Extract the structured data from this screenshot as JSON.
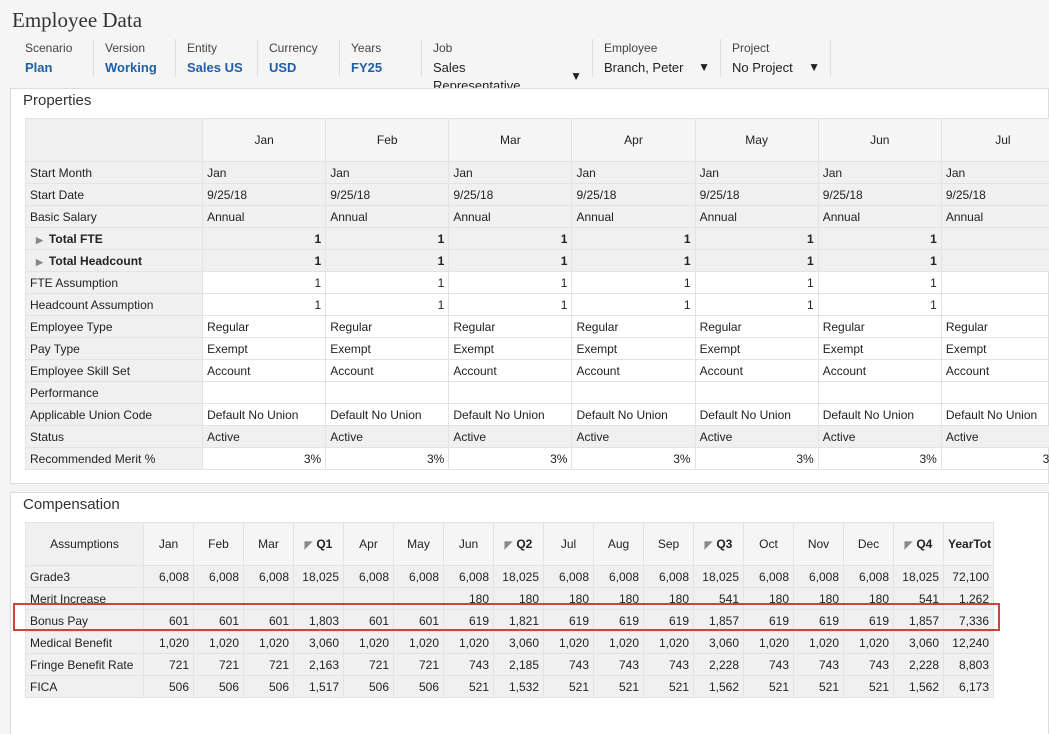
{
  "page": {
    "title": "Employee Data"
  },
  "pov": [
    {
      "label": "Scenario",
      "value": "Plan"
    },
    {
      "label": "Version",
      "value": "Working"
    },
    {
      "label": "Entity",
      "value": "Sales US"
    },
    {
      "label": "Currency",
      "value": "USD"
    },
    {
      "label": "Years",
      "value": "FY25"
    }
  ],
  "pov_selects": [
    {
      "label": "Job",
      "value": "Sales Representative"
    },
    {
      "label": "Employee",
      "value": "Branch, Peter"
    },
    {
      "label": "Project",
      "value": "No Project"
    }
  ],
  "properties": {
    "title": "Properties",
    "columns": [
      "Jan",
      "Feb",
      "Mar",
      "Apr",
      "May",
      "Jun",
      "Jul"
    ],
    "rows": [
      {
        "label": "Start Month",
        "value": "Jan",
        "style": "gray",
        "align": "left"
      },
      {
        "label": "Start Date",
        "value": "9/25/18",
        "style": "gray",
        "align": "left"
      },
      {
        "label": "Basic Salary",
        "value": "Annual",
        "style": "gray",
        "align": "left"
      },
      {
        "label": "Total FTE",
        "value": "1",
        "style": "gray bold",
        "align": "num",
        "expand": true
      },
      {
        "label": "Total Headcount",
        "value": "1",
        "style": "gray bold",
        "align": "num",
        "expand": true
      },
      {
        "label": "FTE Assumption",
        "value": "1",
        "style": "white",
        "align": "num"
      },
      {
        "label": "Headcount Assumption",
        "value": "1",
        "style": "white",
        "align": "num"
      },
      {
        "label": "Employee Type",
        "value": "Regular",
        "style": "white",
        "align": "left"
      },
      {
        "label": "Pay Type",
        "value": "Exempt",
        "style": "white",
        "align": "left"
      },
      {
        "label": "Employee Skill Set",
        "value": "Account",
        "style": "white",
        "align": "left"
      },
      {
        "label": "Performance",
        "value": "",
        "style": "white",
        "align": "left"
      },
      {
        "label": "Applicable Union Code",
        "value": "Default No Union",
        "style": "white",
        "align": "left"
      },
      {
        "label": "Status",
        "value": "Active",
        "style": "gray",
        "align": "left"
      },
      {
        "label": "Recommended Merit %",
        "value": "3%",
        "style": "white",
        "align": "num"
      }
    ]
  },
  "compensation": {
    "title": "Compensation",
    "corner": "Assumptions",
    "columns": [
      {
        "label": "Jan"
      },
      {
        "label": "Feb"
      },
      {
        "label": "Mar"
      },
      {
        "label": "Q1",
        "quarter": true
      },
      {
        "label": "Apr"
      },
      {
        "label": "May"
      },
      {
        "label": "Jun"
      },
      {
        "label": "Q2",
        "quarter": true
      },
      {
        "label": "Jul"
      },
      {
        "label": "Aug"
      },
      {
        "label": "Sep"
      },
      {
        "label": "Q3",
        "quarter": true
      },
      {
        "label": "Oct"
      },
      {
        "label": "Nov"
      },
      {
        "label": "Dec"
      },
      {
        "label": "Q4",
        "quarter": true
      },
      {
        "label": "YearTot",
        "total": true
      }
    ],
    "rows": [
      {
        "label": "Grade3",
        "values": [
          "6,008",
          "6,008",
          "6,008",
          "18,025",
          "6,008",
          "6,008",
          "6,008",
          "18,025",
          "6,008",
          "6,008",
          "6,008",
          "18,025",
          "6,008",
          "6,008",
          "6,008",
          "18,025",
          "72,100"
        ]
      },
      {
        "label": "Merit Increase",
        "values": [
          "",
          "",
          "",
          "",
          "",
          "",
          "180",
          "180",
          "180",
          "180",
          "180",
          "541",
          "180",
          "180",
          "180",
          "541",
          "1,262"
        ]
      },
      {
        "label": "Bonus Pay",
        "highlight": true,
        "values": [
          "601",
          "601",
          "601",
          "1,803",
          "601",
          "601",
          "619",
          "1,821",
          "619",
          "619",
          "619",
          "1,857",
          "619",
          "619",
          "619",
          "1,857",
          "7,336"
        ]
      },
      {
        "label": "Medical Benefit",
        "values": [
          "1,020",
          "1,020",
          "1,020",
          "3,060",
          "1,020",
          "1,020",
          "1,020",
          "3,060",
          "1,020",
          "1,020",
          "1,020",
          "3,060",
          "1,020",
          "1,020",
          "1,020",
          "3,060",
          "12,240"
        ]
      },
      {
        "label": "Fringe Benefit Rate",
        "values": [
          "721",
          "721",
          "721",
          "2,163",
          "721",
          "721",
          "743",
          "2,185",
          "743",
          "743",
          "743",
          "2,228",
          "743",
          "743",
          "743",
          "2,228",
          "8,803"
        ]
      },
      {
        "label": "FICA",
        "values": [
          "506",
          "506",
          "506",
          "1,517",
          "506",
          "506",
          "521",
          "1,532",
          "521",
          "521",
          "521",
          "1,562",
          "521",
          "521",
          "521",
          "1,562",
          "6,173"
        ]
      }
    ]
  }
}
